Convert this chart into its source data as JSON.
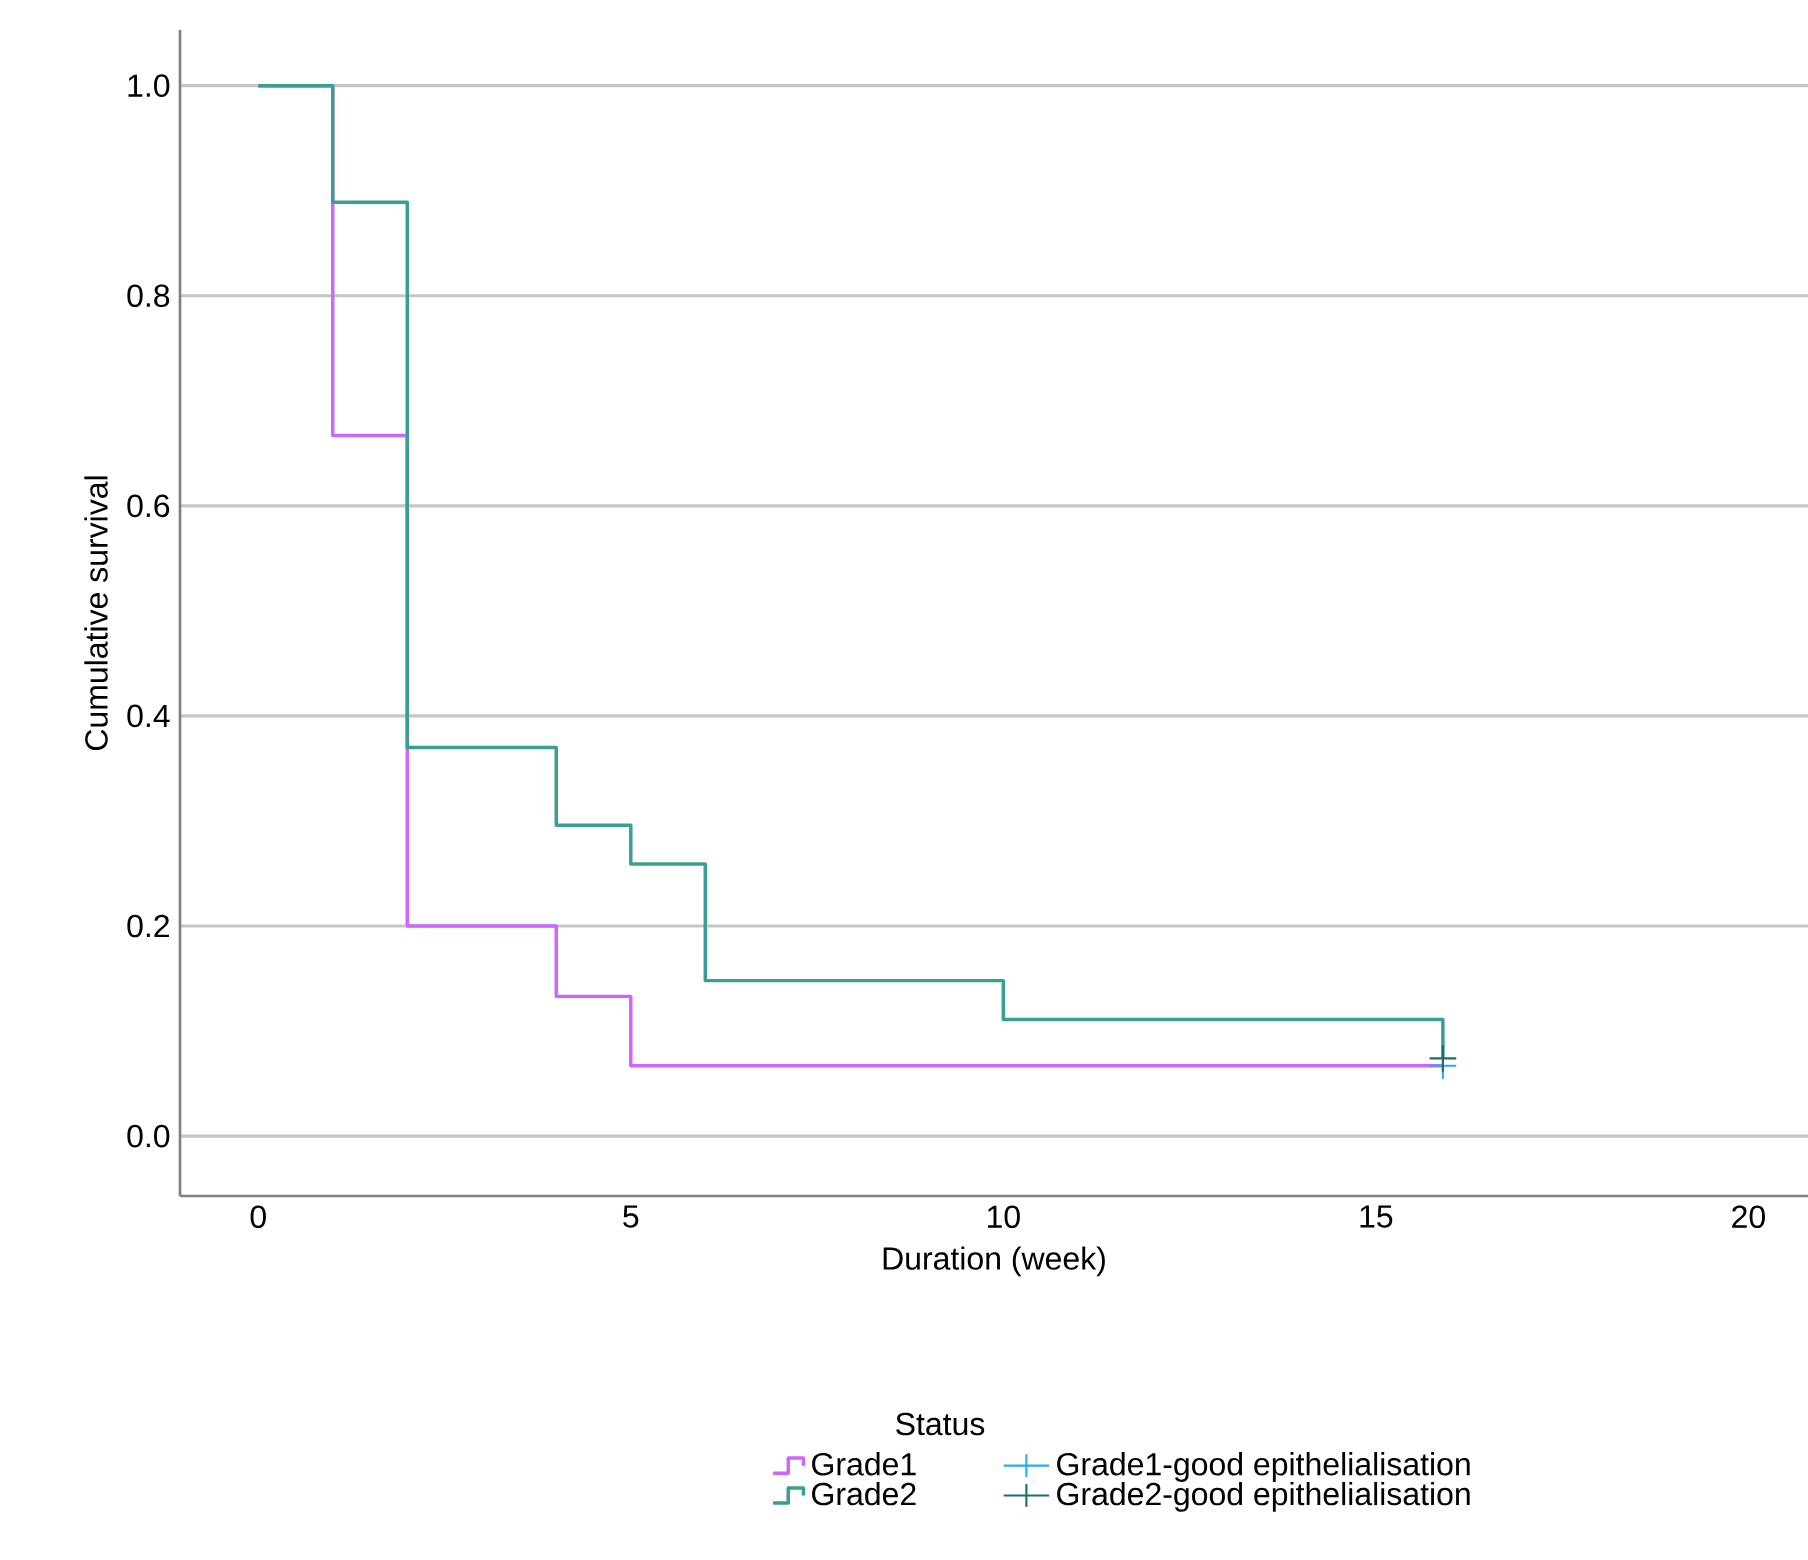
{
  "chart_data": {
    "type": "step",
    "xlabel": "Duration (week)",
    "ylabel": "Cumulative survival",
    "legend_title": "Status",
    "series": [
      {
        "name": "Grade1",
        "color": "#cc66ff",
        "x": [
          0,
          1,
          2,
          4,
          5,
          15.9
        ],
        "values": [
          1.0,
          0.667,
          0.2,
          0.133,
          0.067,
          0.067
        ]
      },
      {
        "name": "Grade2",
        "color": "#3a9e94",
        "x": [
          0,
          1,
          2,
          4,
          5,
          6,
          10,
          15.9
        ],
        "values": [
          1.0,
          0.889,
          0.37,
          0.296,
          0.259,
          0.148,
          0.111,
          0.074
        ]
      },
      {
        "name": "Grade1-good epithelialisation",
        "type": "scatter",
        "marker": "cross",
        "color": "#29aee8",
        "x": [
          15.9
        ],
        "values": [
          0.067
        ]
      },
      {
        "name": "Grade2-good epithelialisation",
        "type": "scatter",
        "marker": "cross",
        "color": "#1f6f63",
        "x": [
          15.9
        ],
        "values": [
          0.074
        ]
      }
    ],
    "xlim": [
      -1.05,
      20.8
    ],
    "ylim": [
      -0.057,
      1.053
    ],
    "xticks": [
      0,
      5,
      10,
      15,
      20
    ],
    "yticks": [
      {
        "value": 0,
        "label": "0.0"
      },
      {
        "value": 0.2,
        "label": "0.2"
      },
      {
        "value": 0.4,
        "label": "0.4"
      },
      {
        "value": 0.6,
        "label": "0.6"
      },
      {
        "value": 0.8,
        "label": "0.8"
      },
      {
        "value": 1.0,
        "label": "1.0"
      }
    ],
    "grid": "y",
    "legend": "bottom"
  }
}
